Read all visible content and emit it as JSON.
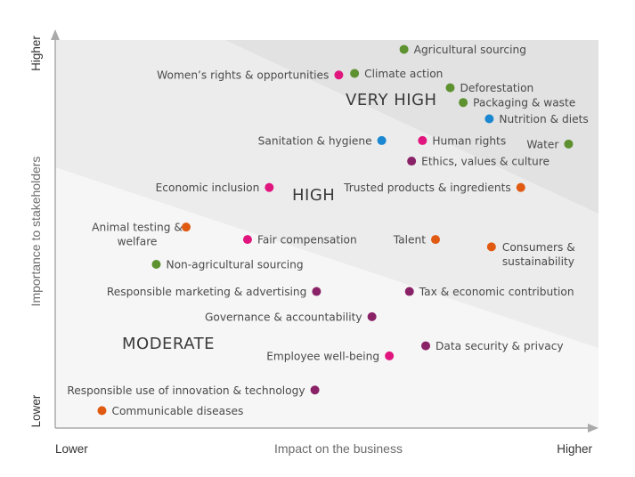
{
  "chart_data": {
    "type": "scatter",
    "xlabel": "Impact on the business",
    "ylabel": "Importance to stakeholders",
    "x_tick_labels": [
      "Lower",
      "Higher"
    ],
    "y_tick_labels": [
      "Lower",
      "Higher"
    ],
    "xlim": [
      0,
      100
    ],
    "ylim": [
      0,
      100
    ],
    "grid": false,
    "colors": {
      "green": "#5e9130",
      "pink": "#e0157e",
      "blue": "#1a87d0",
      "purple": "#8a2268",
      "orange": "#e05a12",
      "very_high_zone": "#e2e2e2",
      "high_zone": "#ececec",
      "moderate_zone": "#f6f6f6",
      "axis": "#aaaaaa"
    },
    "zones": [
      {
        "label": "VERY HIGH"
      },
      {
        "label": "HIGH"
      },
      {
        "label": "MODERATE"
      }
    ],
    "points": [
      {
        "label": "Agricultural sourcing",
        "color": "green",
        "x": 64.2,
        "y": 97.6
      },
      {
        "label": "Women’s rights & opportunities",
        "color": "pink",
        "x": 52.2,
        "y": 91.0
      },
      {
        "label": "Climate action",
        "color": "green",
        "x": 55.1,
        "y": 91.4
      },
      {
        "label": "Deforestation",
        "color": "green",
        "x": 72.7,
        "y": 87.7
      },
      {
        "label": "Packaging & waste",
        "color": "green",
        "x": 75.1,
        "y": 83.9
      },
      {
        "label": "Nutrition & diets",
        "color": "blue",
        "x": 79.9,
        "y": 79.7
      },
      {
        "label": "Sanitation & hygiene",
        "color": "blue",
        "x": 60.1,
        "y": 74.1
      },
      {
        "label": "Human rights",
        "color": "pink",
        "x": 67.6,
        "y": 74.1
      },
      {
        "label": "Water",
        "color": "green",
        "x": 94.5,
        "y": 73.2
      },
      {
        "label": "Ethics, values & culture",
        "color": "purple",
        "x": 65.6,
        "y": 68.8
      },
      {
        "label": "Economic inclusion",
        "color": "pink",
        "x": 39.4,
        "y": 62.0
      },
      {
        "label": "Trusted products & ingredients",
        "color": "orange",
        "x": 85.7,
        "y": 62.0
      },
      {
        "label": "Animal testing & welfare",
        "color": "orange",
        "x": 24.1,
        "y": 51.8
      },
      {
        "label": "Fair compensation",
        "color": "pink",
        "x": 35.4,
        "y": 48.6
      },
      {
        "label": "Talent",
        "color": "orange",
        "x": 70.0,
        "y": 48.6
      },
      {
        "label": "Consumers & sustainability",
        "color": "orange",
        "x": 80.3,
        "y": 46.7
      },
      {
        "label": "Non-agricultural sourcing",
        "color": "green",
        "x": 18.6,
        "y": 42.2
      },
      {
        "label": "Responsible marketing & advertising",
        "color": "purple",
        "x": 48.1,
        "y": 35.2
      },
      {
        "label": "Tax & economic contribution",
        "color": "purple",
        "x": 65.2,
        "y": 35.2
      },
      {
        "label": "Governance & accountability",
        "color": "purple",
        "x": 58.3,
        "y": 28.7
      },
      {
        "label": "Data security & privacy",
        "color": "purple",
        "x": 68.2,
        "y": 21.2
      },
      {
        "label": "Employee well-being",
        "color": "pink",
        "x": 61.5,
        "y": 18.6
      },
      {
        "label": "Responsible use of innovation & technology",
        "color": "purple",
        "x": 47.8,
        "y": 9.8
      },
      {
        "label": "Communicable diseases",
        "color": "orange",
        "x": 8.6,
        "y": 4.5
      }
    ]
  }
}
